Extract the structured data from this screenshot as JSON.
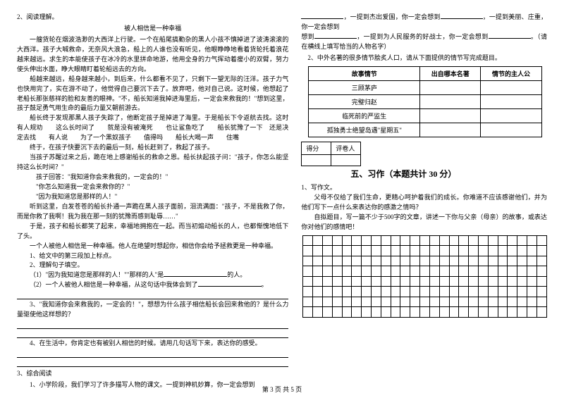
{
  "left": {
    "q2": "2、阅读理解。",
    "storyTitle": "被人相信是一种幸福",
    "para1": "一艘货轮在烟波浩渺的大西洋上行驶。一个在船尾搞勤杂的黑人小孩不慎掉进了波涛滚滚的大西洋。孩子大喊救命，无奈风大浪急，船上的人谁也没有听见，他眼睁睁地看着货轮托着浪花越来越远。求生的本能使孩子在冰冷的水里拼命地游，他用全身的力气挥动着瘦小的双臂，努力使头伸出水面，睁大眼睛盯着轮船远去的方向。",
    "para2": "船越来越远，船身越来越小，到后来，什么都看不见了，只剩下一望无际的汪洋。孩子力气也快用完了，实在游不动了，他觉得自己要沉下去了。放弃吧，他对自己说。这时候，他想起了老船长那张慈祥的脸和友善的眼神。\"不，船长知道我掉进海里后，一定会来救我的！\"想到这里，孩子鼓足勇气用生命的最后力量又朝前游去。",
    "para3": "船长终于发现那黑人孩子失踪了，他断定孩子是掉进了海里。于是船长下令返航去找。这时　有人规劝　　这么长时间了　　就是没有被淹死　　也让鲨鱼吃了　　船长犹豫了一下　还是决定去找　　有人说　　为了一个黑奴孩子　　值得吗　　船长大喝一声　　住嘴",
    "para4": "终于，在孩子快要沉下去的最后一刻，船长赶到了，救起了孩子。",
    "para5": "当孩子苏醒过来之后，跪在地上感谢船长的救命之恩。船长扶起孩子问：\"孩子，你怎么能坚持这么长时间？\"",
    "para6": "孩子回答：\"我知道你会来救我的，一定会的！\"",
    "para7": "\"你怎么知道我一定会来救你的？\"",
    "para8": "\"因为我知道您是那样的人！\"",
    "para9": "听到这里，白发苍苍的船长扑通一声跪在黑人孩子面前，泪流满面：\"孩子，不是我救了你，而是你救了我啊！我为我在那一刻的犹豫而感到耻辱……\"",
    "para10": "于是，孩子和船长都笑了起来，幸福地拥抱在一起。而当初煽动船长的人，也都惭愧地低下了头。",
    "para11": "一个人被他人相信是一种幸福。他人在绝望时想起你，相信你会给予拯救更是一种幸福。",
    "s1": "1、给文中的第三段加上标点。",
    "s2": "2、理解句子填空。",
    "s2a_pre": "（1）\"因为我知道您是那样的人！\"\"那样的人\"是",
    "s2a_post": "的人。",
    "s2b_pre": "（2）一个人被他人相信是一种幸福，从这句话中我体会到了",
    "s2b_post": "。",
    "s3": "3、\"我知道你会来救我的，一定会的！\"，想想为什么孩子相信船长会回来救他的？是什么力量驱使他这样想的？",
    "s4": "4、在生活中，你肯定也有被别人相信的时候。请用几句话写下来，表达你的感受。",
    "q3": "3、综合阅读",
    "q3_1": "1、小学阶段，我们学习了许多描写人物的课文。一提到神机妙算，你一定会想到"
  },
  "right": {
    "topA": "，一提到杰出爱国，你一定会想到",
    "topB": "，一提到美丽、庄重，你一定会想到",
    "topC": "，一提到为人民服务的好战士，你一定会想到",
    "topD": "。（请在横线上填写恰当的人物名字）",
    "q2r": "2、中外名著的很多情节脍炙人口，请从下面提供的情节写完成题目。",
    "th1": "故事情节",
    "th2": "出自哪本名著",
    "th3": "情节的主人公",
    "r1": "三顾茅庐",
    "r2": "完璧归赵",
    "r3": "临死前的严监生",
    "r4": "孤独勇士绝望岛遇\"星期五\"",
    "scoreA": "得分",
    "scoreB": "评卷人",
    "section": "五、习作（本题共计 30 分）",
    "w1": "1、写作文。",
    "w2": "父母不仅给了我们生命，更精心呵护着我们的成长。你难道不应该感谢他们，并为他们写下一点什么来表达你的感激之情吗？",
    "w3": "自拟题目，写一篇不少于500字的文章，讲述一下你与父亲（母亲）的故事，或表达你对他们的感情吧！"
  },
  "footer": "第 3 页 共 5 页",
  "grid": {
    "rows": 8,
    "cols": 25
  }
}
